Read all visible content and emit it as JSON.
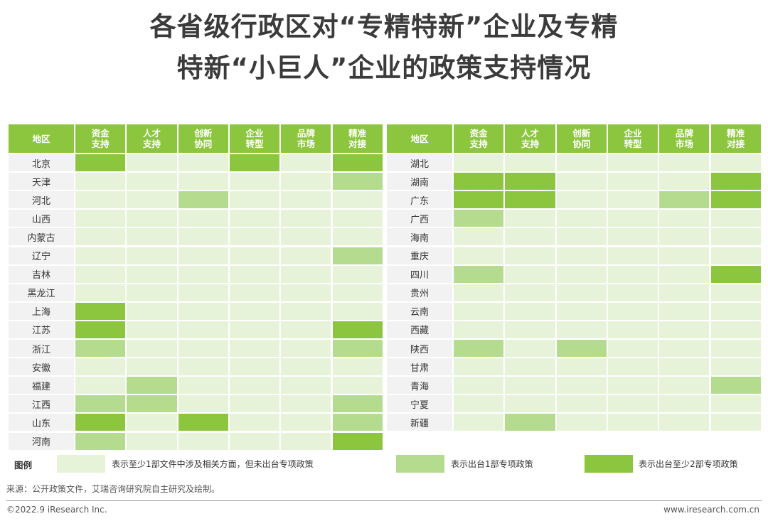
{
  "title": {
    "line1": "各省级行政区对“专精特新”企业及专精",
    "line2": "特新“小巨人”企业的政策支持情况"
  },
  "colors": {
    "header": "#8cc63f",
    "level0": "#e6f3d9",
    "level1": "#b5dc8e",
    "level2": "#8cc63f",
    "region_cell": "#f2f2f2"
  },
  "chart_data": {
    "type": "heatmap",
    "header_region": "地区",
    "columns": [
      [
        "资金",
        "支持"
      ],
      [
        "人才",
        "支持"
      ],
      [
        "创新",
        "协同"
      ],
      [
        "企业",
        "转型"
      ],
      [
        "品牌",
        "市场"
      ],
      [
        "精准",
        "对接"
      ]
    ],
    "levels": {
      "0": "表示至少1部文件中涉及相关方面，但未出台专项政策",
      "1": "表示出台1部专项政策",
      "2": "表示出台至少2部专项政策"
    },
    "tables": [
      {
        "rows": [
          {
            "region": "北京",
            "values": [
              2,
              0,
              0,
              2,
              0,
              2
            ]
          },
          {
            "region": "天津",
            "values": [
              0,
              0,
              0,
              0,
              0,
              1
            ]
          },
          {
            "region": "河北",
            "values": [
              0,
              0,
              1,
              0,
              0,
              0
            ]
          },
          {
            "region": "山西",
            "values": [
              0,
              0,
              0,
              0,
              0,
              0
            ]
          },
          {
            "region": "内蒙古",
            "values": [
              0,
              0,
              0,
              0,
              0,
              0
            ]
          },
          {
            "region": "辽宁",
            "values": [
              0,
              0,
              0,
              0,
              0,
              1
            ]
          },
          {
            "region": "吉林",
            "values": [
              0,
              0,
              0,
              0,
              0,
              0
            ]
          },
          {
            "region": "黑龙江",
            "values": [
              0,
              0,
              0,
              0,
              0,
              0
            ]
          },
          {
            "region": "上海",
            "values": [
              2,
              0,
              0,
              0,
              0,
              0
            ]
          },
          {
            "region": "江苏",
            "values": [
              2,
              0,
              0,
              0,
              0,
              2
            ]
          },
          {
            "region": "浙江",
            "values": [
              1,
              0,
              0,
              0,
              0,
              1
            ]
          },
          {
            "region": "安徽",
            "values": [
              0,
              0,
              0,
              0,
              0,
              0
            ]
          },
          {
            "region": "福建",
            "values": [
              0,
              1,
              0,
              0,
              0,
              0
            ]
          },
          {
            "region": "江西",
            "values": [
              1,
              1,
              0,
              0,
              0,
              1
            ]
          },
          {
            "region": "山东",
            "values": [
              2,
              0,
              2,
              0,
              0,
              1
            ]
          },
          {
            "region": "河南",
            "values": [
              1,
              0,
              0,
              0,
              0,
              2
            ]
          }
        ]
      },
      {
        "rows": [
          {
            "region": "湖北",
            "values": [
              0,
              0,
              0,
              0,
              0,
              0
            ]
          },
          {
            "region": "湖南",
            "values": [
              2,
              2,
              0,
              0,
              0,
              2
            ]
          },
          {
            "region": "广东",
            "values": [
              2,
              2,
              0,
              0,
              1,
              2
            ]
          },
          {
            "region": "广西",
            "values": [
              1,
              0,
              0,
              0,
              0,
              0
            ]
          },
          {
            "region": "海南",
            "values": [
              0,
              0,
              0,
              0,
              0,
              0
            ]
          },
          {
            "region": "重庆",
            "values": [
              0,
              0,
              0,
              0,
              0,
              0
            ]
          },
          {
            "region": "四川",
            "values": [
              1,
              0,
              0,
              0,
              0,
              2
            ]
          },
          {
            "region": "贵州",
            "values": [
              0,
              0,
              0,
              0,
              0,
              0
            ]
          },
          {
            "region": "云南",
            "values": [
              0,
              0,
              0,
              0,
              0,
              0
            ]
          },
          {
            "region": "西藏",
            "values": [
              0,
              0,
              0,
              0,
              0,
              0
            ]
          },
          {
            "region": "陕西",
            "values": [
              1,
              0,
              1,
              0,
              0,
              0
            ]
          },
          {
            "region": "甘肃",
            "values": [
              0,
              0,
              0,
              0,
              0,
              0
            ]
          },
          {
            "region": "青海",
            "values": [
              0,
              0,
              0,
              0,
              0,
              1
            ]
          },
          {
            "region": "宁夏",
            "values": [
              0,
              0,
              0,
              0,
              0,
              0
            ]
          },
          {
            "region": "新疆",
            "values": [
              0,
              1,
              0,
              0,
              0,
              0
            ]
          }
        ]
      }
    ]
  },
  "legend": {
    "title": "图例",
    "item0": "表示至少1部文件中涉及相关方面，但未出台专项政策",
    "item1": "表示出台1部专项政策",
    "item2": "表示出台至少2部专项政策"
  },
  "source": "来源：公开政策文件，艾瑞咨询研究院自主研究及绘制。",
  "footer": {
    "copyright": "©2022.9 iResearch Inc.",
    "website": "www.iresearch.com.cn"
  }
}
